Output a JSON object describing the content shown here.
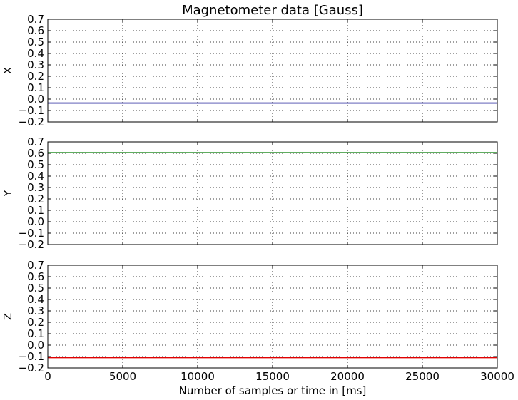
{
  "chart_data": {
    "type": "line",
    "title": "Magnetometer data [Gauss]",
    "xlabel": "Number of samples or time in [ms]",
    "xlim": [
      0,
      30000
    ],
    "xticks": [
      "0",
      "5000",
      "10000",
      "15000",
      "20000",
      "25000",
      "30000"
    ],
    "ylim": [
      -0.2,
      0.7
    ],
    "yticks": [
      "−0.2",
      "−0.1",
      "0.0",
      "0.1",
      "0.2",
      "0.3",
      "0.4",
      "0.5",
      "0.6",
      "0.7"
    ],
    "grid": true,
    "shared_x": true,
    "series": [
      {
        "name": "X",
        "color": "#00008b",
        "x": [
          0,
          30000
        ],
        "values": [
          -0.035,
          -0.035
        ]
      },
      {
        "name": "Y",
        "color": "#007a00",
        "x": [
          0,
          30000
        ],
        "values": [
          0.605,
          0.605
        ]
      },
      {
        "name": "Z",
        "color": "#e00000",
        "x": [
          0,
          30000
        ],
        "values": [
          -0.11,
          -0.11
        ]
      }
    ]
  }
}
